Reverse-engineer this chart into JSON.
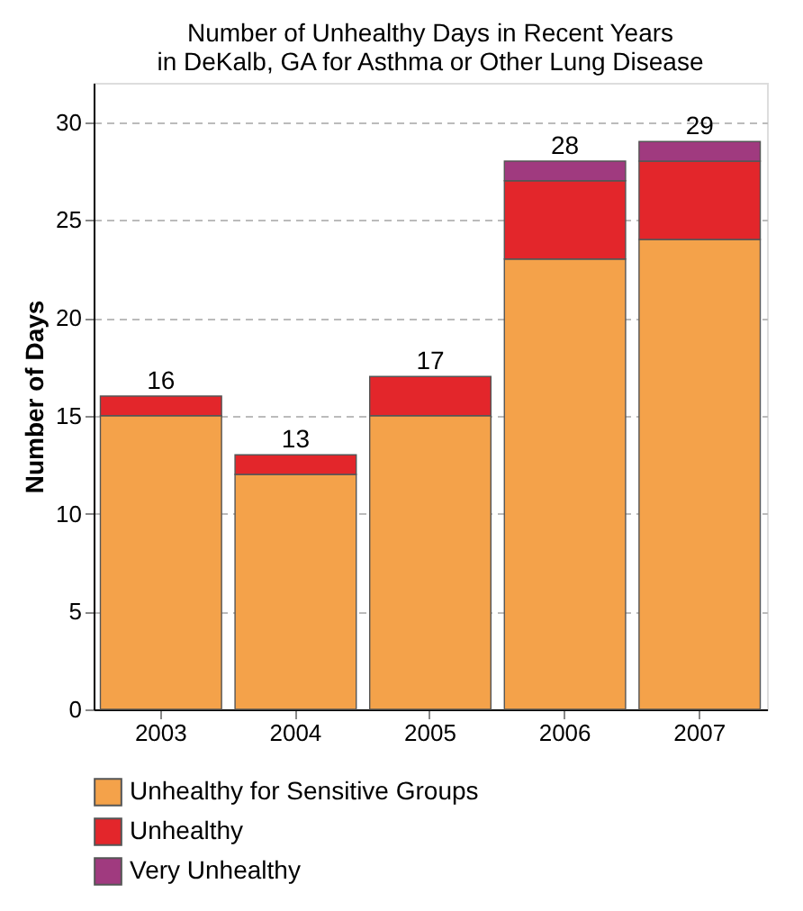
{
  "chart_data": {
    "type": "bar",
    "title": "Number of Unhealthy Days in Recent Years\nin DeKalb, GA for Asthma or Other Lung Disease",
    "ylabel": "Number of Days",
    "categories": [
      "2003",
      "2004",
      "2005",
      "2006",
      "2007"
    ],
    "series": [
      {
        "name": "Unhealthy for Sensitive Groups",
        "color": "#f4a24a",
        "values": [
          15,
          12,
          15,
          23,
          24
        ]
      },
      {
        "name": "Unhealthy",
        "color": "#e3262b",
        "values": [
          1,
          1,
          2,
          4,
          4
        ]
      },
      {
        "name": "Very Unhealthy",
        "color": "#a03a7f",
        "values": [
          0,
          0,
          0,
          1,
          1
        ]
      }
    ],
    "stacked": true,
    "totals": [
      "16",
      "13",
      "17",
      "28",
      "29"
    ],
    "ylim": [
      0,
      32
    ],
    "yticks": [
      0,
      5,
      10,
      15,
      20,
      25,
      30
    ],
    "grid": "y",
    "legend": "bottom"
  }
}
